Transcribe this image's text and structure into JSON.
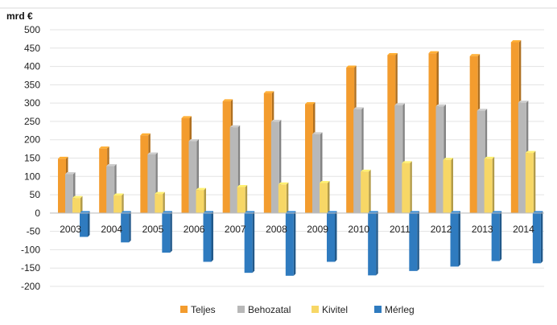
{
  "chart_data": {
    "type": "bar",
    "ylabel": "mrd €",
    "ylim": [
      -200,
      500
    ],
    "yticks": [
      500,
      450,
      400,
      350,
      300,
      250,
      200,
      150,
      100,
      50,
      0,
      -50,
      -100,
      -150,
      -200
    ],
    "grid": true,
    "legend_position": "bottom",
    "categories": [
      "2003",
      "2004",
      "2005",
      "2006",
      "2007",
      "2008",
      "2009",
      "2010",
      "2011",
      "2012",
      "2013",
      "2014"
    ],
    "series": [
      {
        "name": "Teljes",
        "color": "#f39c2e",
        "values": [
          148,
          176,
          212,
          259,
          305,
          327,
          297,
          397,
          431,
          436,
          428,
          466
        ]
      },
      {
        "name": "Behozatal",
        "color": "#b8b8b8",
        "values": [
          106,
          128,
          160,
          196,
          234,
          249,
          215,
          283,
          294,
          291,
          279,
          301
        ]
      },
      {
        "name": "Kivitel",
        "color": "#f7d766",
        "values": [
          41,
          48,
          52,
          63,
          71,
          78,
          82,
          113,
          136,
          145,
          148,
          164
        ]
      },
      {
        "name": "Mérleg",
        "color": "#2f7bbf",
        "values": [
          -65,
          -80,
          -108,
          -133,
          -163,
          -171,
          -133,
          -170,
          -158,
          -146,
          -131,
          -137
        ]
      }
    ]
  }
}
